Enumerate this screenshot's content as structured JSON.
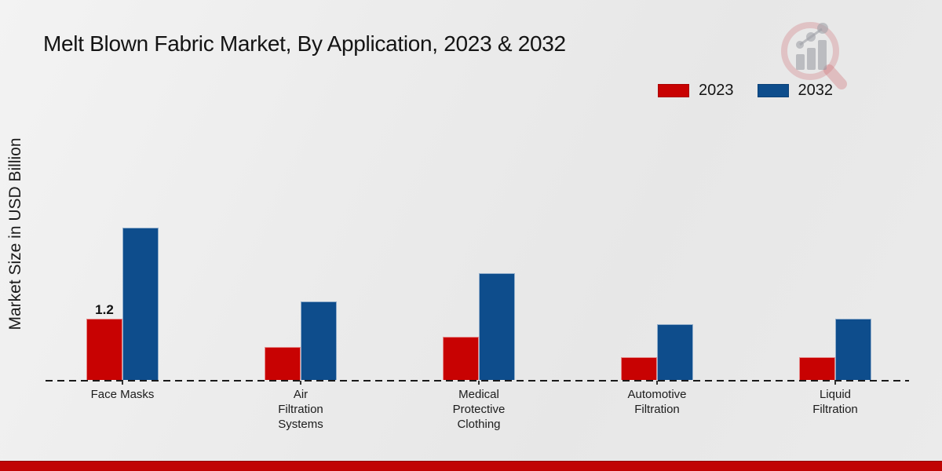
{
  "title": "Melt Blown Fabric Market, By Application, 2023 & 2032",
  "ylabel": "Market Size in USD Billion",
  "legend": {
    "items": [
      {
        "label": "2023"
      },
      {
        "label": "2032"
      }
    ]
  },
  "colors": {
    "series_2023": "#c80202",
    "series_2032": "#0e4d8c",
    "footer_stripe": "#c00404",
    "axis": "#1a1a1a"
  },
  "footer": {},
  "logo_name": "magnifier-bar-chart-watermark",
  "chart_data": {
    "type": "bar",
    "title": "Melt Blown Fabric Market, By Application, 2023 & 2032",
    "xlabel": "",
    "ylabel": "Market Size in USD Billion",
    "categories": [
      "Face Masks",
      "Air Filtration Systems",
      "Medical Protective Clothing",
      "Automotive Filtration",
      "Liquid Filtration"
    ],
    "category_label_lines": [
      [
        "Face Masks"
      ],
      [
        "Air",
        "Filtration",
        "Systems"
      ],
      [
        "Medical",
        "Protective",
        "Clothing"
      ],
      [
        "Automotive",
        "Filtration"
      ],
      [
        "Liquid",
        "Filtration"
      ]
    ],
    "series": [
      {
        "name": "2023",
        "color": "#c80202",
        "values": [
          1.2,
          0.65,
          0.85,
          0.45,
          0.45
        ]
      },
      {
        "name": "2032",
        "color": "#0e4d8c",
        "values": [
          3.0,
          1.55,
          2.1,
          1.1,
          1.2
        ]
      }
    ],
    "annotations": [
      {
        "category_index": 0,
        "series_index": 0,
        "text": "1.2"
      }
    ],
    "ylim": [
      0,
      3.2
    ],
    "grid": false,
    "legend_position": "top-right",
    "baseline_style": "dashed"
  }
}
